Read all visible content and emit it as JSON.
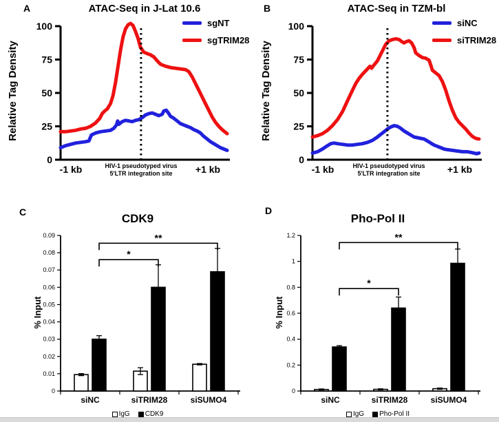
{
  "page": {
    "background": "#ffffff",
    "line_blue": "#2121dd",
    "line_red": "#ee1111"
  },
  "chart_data": [
    {
      "letter": "A",
      "title": "ATAC-Seq in J-Lat 10.6",
      "type": "line",
      "ylabel": "Relative Tag Density",
      "ymax": 100,
      "yticks": [
        {
          "v": 0,
          "label": "0"
        },
        {
          "v": 25,
          "label": "25"
        },
        {
          "v": 50,
          "label": "50"
        },
        {
          "v": 75,
          "label": "75"
        },
        {
          "v": 100,
          "label": "100"
        }
      ],
      "center_line_x": 0.483,
      "xlabel_left": "-1 kb",
      "xlabel_center_line1": "HIV-1 pseudotyped virus",
      "xlabel_center_line2": "5'LTR integration site",
      "xlabel_right": "+1 kb",
      "series": [
        {
          "name": "sgNT",
          "color": "#2121dd",
          "points": [
            [
              0,
              9
            ],
            [
              0.03,
              10.5
            ],
            [
              0.06,
              11.5
            ],
            [
              0.09,
              12.5
            ],
            [
              0.12,
              13
            ],
            [
              0.15,
              13.5
            ],
            [
              0.17,
              14
            ],
            [
              0.185,
              18.5
            ],
            [
              0.21,
              20
            ],
            [
              0.24,
              21
            ],
            [
              0.27,
              21.5
            ],
            [
              0.3,
              22
            ],
            [
              0.32,
              23.5
            ],
            [
              0.335,
              26
            ],
            [
              0.343,
              29
            ],
            [
              0.35,
              26.5
            ],
            [
              0.37,
              28.5
            ],
            [
              0.39,
              29.5
            ],
            [
              0.41,
              29
            ],
            [
              0.43,
              28.5
            ],
            [
              0.45,
              29.5
            ],
            [
              0.47,
              30
            ],
            [
              0.49,
              31.5
            ],
            [
              0.51,
              33.5
            ],
            [
              0.53,
              34.5
            ],
            [
              0.55,
              35
            ],
            [
              0.57,
              34
            ],
            [
              0.59,
              33
            ],
            [
              0.61,
              34
            ],
            [
              0.62,
              36.5
            ],
            [
              0.635,
              37
            ],
            [
              0.65,
              34.5
            ],
            [
              0.66,
              32.5
            ],
            [
              0.68,
              31
            ],
            [
              0.7,
              29
            ],
            [
              0.72,
              27
            ],
            [
              0.74,
              26
            ],
            [
              0.76,
              25
            ],
            [
              0.78,
              24
            ],
            [
              0.8,
              22.5
            ],
            [
              0.82,
              21.5
            ],
            [
              0.84,
              20
            ],
            [
              0.86,
              17.5
            ],
            [
              0.88,
              15.5
            ],
            [
              0.9,
              13.5
            ],
            [
              0.92,
              12
            ],
            [
              0.94,
              10.5
            ],
            [
              0.96,
              9
            ],
            [
              0.98,
              8
            ],
            [
              1,
              7
            ]
          ]
        },
        {
          "name": "sgTRIM28",
          "color": "#ee1111",
          "points": [
            [
              0,
              21
            ],
            [
              0.03,
              21
            ],
            [
              0.06,
              21.5
            ],
            [
              0.09,
              22
            ],
            [
              0.12,
              23
            ],
            [
              0.15,
              23.5
            ],
            [
              0.18,
              25
            ],
            [
              0.21,
              27.5
            ],
            [
              0.235,
              31
            ],
            [
              0.25,
              34.5
            ],
            [
              0.265,
              36.5
            ],
            [
              0.28,
              38
            ],
            [
              0.3,
              42
            ],
            [
              0.315,
              48
            ],
            [
              0.33,
              58
            ],
            [
              0.345,
              70
            ],
            [
              0.36,
              82
            ],
            [
              0.375,
              92
            ],
            [
              0.39,
              98
            ],
            [
              0.405,
              101
            ],
            [
              0.42,
              102
            ],
            [
              0.435,
              100.5
            ],
            [
              0.45,
              96
            ],
            [
              0.465,
              91
            ],
            [
              0.48,
              84
            ],
            [
              0.5,
              80.5
            ],
            [
              0.52,
              79.5
            ],
            [
              0.54,
              78.5
            ],
            [
              0.56,
              77
            ],
            [
              0.58,
              74
            ],
            [
              0.6,
              71.5
            ],
            [
              0.63,
              70
            ],
            [
              0.66,
              69
            ],
            [
              0.69,
              68.5
            ],
            [
              0.72,
              68
            ],
            [
              0.75,
              67.5
            ],
            [
              0.77,
              66
            ],
            [
              0.79,
              62
            ],
            [
              0.81,
              57
            ],
            [
              0.83,
              52
            ],
            [
              0.85,
              47
            ],
            [
              0.87,
              42
            ],
            [
              0.89,
              37
            ],
            [
              0.91,
              32
            ],
            [
              0.93,
              28
            ],
            [
              0.95,
              25
            ],
            [
              0.97,
              22.5
            ],
            [
              0.985,
              21
            ],
            [
              1,
              19.5
            ]
          ]
        }
      ]
    },
    {
      "letter": "B",
      "title": "ATAC-Seq in TZM-bl",
      "type": "line",
      "ylabel": "Relative Tag Density",
      "ymax": 100,
      "yticks": [
        {
          "v": 0,
          "label": "0"
        },
        {
          "v": 25,
          "label": "25"
        },
        {
          "v": 50,
          "label": "50"
        },
        {
          "v": 75,
          "label": "75"
        },
        {
          "v": 100,
          "label": "100"
        }
      ],
      "center_line_x": 0.45,
      "xlabel_left": "-1 kb",
      "xlabel_center_line1": "HIV-1 pseudotyped virus",
      "xlabel_center_line2": "5'LTR integration site",
      "xlabel_right": "+1 kb",
      "series": [
        {
          "name": "siNC",
          "color": "#2121dd",
          "points": [
            [
              0,
              5
            ],
            [
              0.03,
              6
            ],
            [
              0.06,
              8
            ],
            [
              0.09,
              10.5
            ],
            [
              0.11,
              12
            ],
            [
              0.13,
              12.5
            ],
            [
              0.15,
              12
            ],
            [
              0.18,
              11.5
            ],
            [
              0.21,
              11
            ],
            [
              0.24,
              11
            ],
            [
              0.27,
              11.5
            ],
            [
              0.3,
              12
            ],
            [
              0.33,
              13
            ],
            [
              0.36,
              14.5
            ],
            [
              0.39,
              17
            ],
            [
              0.41,
              19
            ],
            [
              0.43,
              21
            ],
            [
              0.45,
              23
            ],
            [
              0.47,
              24.5
            ],
            [
              0.49,
              25.5
            ],
            [
              0.51,
              25
            ],
            [
              0.53,
              23.5
            ],
            [
              0.55,
              21.5
            ],
            [
              0.57,
              20
            ],
            [
              0.59,
              18.5
            ],
            [
              0.61,
              17
            ],
            [
              0.63,
              16.5
            ],
            [
              0.65,
              16
            ],
            [
              0.67,
              15.5
            ],
            [
              0.69,
              14
            ],
            [
              0.71,
              12.5
            ],
            [
              0.73,
              11
            ],
            [
              0.75,
              10
            ],
            [
              0.77,
              9
            ],
            [
              0.79,
              8
            ],
            [
              0.81,
              7.5
            ],
            [
              0.84,
              7
            ],
            [
              0.87,
              6.5
            ],
            [
              0.9,
              6
            ],
            [
              0.93,
              6
            ],
            [
              0.95,
              5.5
            ],
            [
              0.97,
              5
            ],
            [
              0.985,
              4.5
            ],
            [
              1,
              5
            ]
          ]
        },
        {
          "name": "siTRIM28",
          "color": "#ee1111",
          "points": [
            [
              0,
              17
            ],
            [
              0.03,
              18
            ],
            [
              0.06,
              19.5
            ],
            [
              0.09,
              22
            ],
            [
              0.12,
              25.5
            ],
            [
              0.15,
              30
            ],
            [
              0.18,
              36
            ],
            [
              0.21,
              44
            ],
            [
              0.24,
              52
            ],
            [
              0.26,
              57
            ],
            [
              0.28,
              61
            ],
            [
              0.3,
              64
            ],
            [
              0.315,
              66
            ],
            [
              0.33,
              68
            ],
            [
              0.345,
              70
            ],
            [
              0.355,
              68.5
            ],
            [
              0.37,
              71
            ],
            [
              0.39,
              74
            ],
            [
              0.41,
              79
            ],
            [
              0.43,
              84
            ],
            [
              0.44,
              86.5
            ],
            [
              0.46,
              89
            ],
            [
              0.48,
              90
            ],
            [
              0.5,
              90.5
            ],
            [
              0.52,
              90
            ],
            [
              0.535,
              88.5
            ],
            [
              0.55,
              87.5
            ],
            [
              0.565,
              88.5
            ],
            [
              0.58,
              89
            ],
            [
              0.595,
              87.5
            ],
            [
              0.61,
              84
            ],
            [
              0.62,
              80
            ],
            [
              0.64,
              78
            ],
            [
              0.66,
              76.5
            ],
            [
              0.68,
              76
            ],
            [
              0.7,
              74.5
            ],
            [
              0.71,
              71
            ],
            [
              0.72,
              67
            ],
            [
              0.74,
              65
            ],
            [
              0.76,
              63
            ],
            [
              0.78,
              58.5
            ],
            [
              0.8,
              52
            ],
            [
              0.82,
              44
            ],
            [
              0.84,
              37
            ],
            [
              0.86,
              31.5
            ],
            [
              0.88,
              28
            ],
            [
              0.9,
              25.5
            ],
            [
              0.92,
              23
            ],
            [
              0.94,
              20
            ],
            [
              0.96,
              17.5
            ],
            [
              0.98,
              16
            ],
            [
              1,
              15.5
            ]
          ]
        }
      ]
    },
    {
      "letter": "C",
      "title": "CDK9",
      "type": "bar",
      "ylabel": "% Input",
      "ymax": 0.09,
      "yticks": [
        {
          "v": 0,
          "label": "0"
        },
        {
          "v": 0.01,
          "label": "0.01"
        },
        {
          "v": 0.02,
          "label": "0.02"
        },
        {
          "v": 0.03,
          "label": "0.03"
        },
        {
          "v": 0.04,
          "label": "0.04"
        },
        {
          "v": 0.05,
          "label": "0.05"
        },
        {
          "v": 0.06,
          "label": "0.06"
        },
        {
          "v": 0.07,
          "label": "0.07"
        },
        {
          "v": 0.08,
          "label": "0.08"
        },
        {
          "v": 0.09,
          "label": "0.09"
        }
      ],
      "categories": [
        "siNC",
        "siTRIM28",
        "siSUMO4"
      ],
      "series": [
        {
          "name": "IgG",
          "fill": "#ffffff",
          "values": [
            0.0095,
            0.0115,
            0.0155
          ],
          "errors": [
            0.0006,
            0.002,
            0.0004
          ]
        },
        {
          "name": "CDK9",
          "fill": "#000000",
          "values": [
            0.03,
            0.06,
            0.069
          ],
          "errors": [
            0.002,
            0.013,
            0.0135
          ]
        }
      ],
      "brackets": [
        {
          "from": 0,
          "to": 1,
          "y": 0.076,
          "label": "*"
        },
        {
          "from": 0,
          "to": 2,
          "y": 0.0855,
          "label": "**"
        }
      ]
    },
    {
      "letter": "D",
      "title": "Pho-Pol II",
      "type": "bar",
      "ylabel": "% Input",
      "ymax": 1.2,
      "yticks": [
        {
          "v": 0,
          "label": "0"
        },
        {
          "v": 0.2,
          "label": "0.2"
        },
        {
          "v": 0.4,
          "label": "0.4"
        },
        {
          "v": 0.6,
          "label": "0.6"
        },
        {
          "v": 0.8,
          "label": "0.8"
        },
        {
          "v": 1,
          "label": "1"
        },
        {
          "v": 1.2,
          "label": "1.2"
        }
      ],
      "categories": [
        "siNC",
        "siTRIM28",
        "siSUMO4"
      ],
      "series": [
        {
          "name": "IgG",
          "fill": "#ffffff",
          "values": [
            0.012,
            0.013,
            0.018
          ],
          "errors": [
            0.004,
            0.004,
            0.005
          ]
        },
        {
          "name": "Pho-Pol II",
          "fill": "#000000",
          "values": [
            0.34,
            0.64,
            0.985
          ],
          "errors": [
            0.01,
            0.085,
            0.11
          ]
        }
      ],
      "brackets": [
        {
          "from": 0,
          "to": 1,
          "y": 0.79,
          "label": "*"
        },
        {
          "from": 0,
          "to": 2,
          "y": 1.145,
          "label": "**"
        }
      ]
    }
  ]
}
